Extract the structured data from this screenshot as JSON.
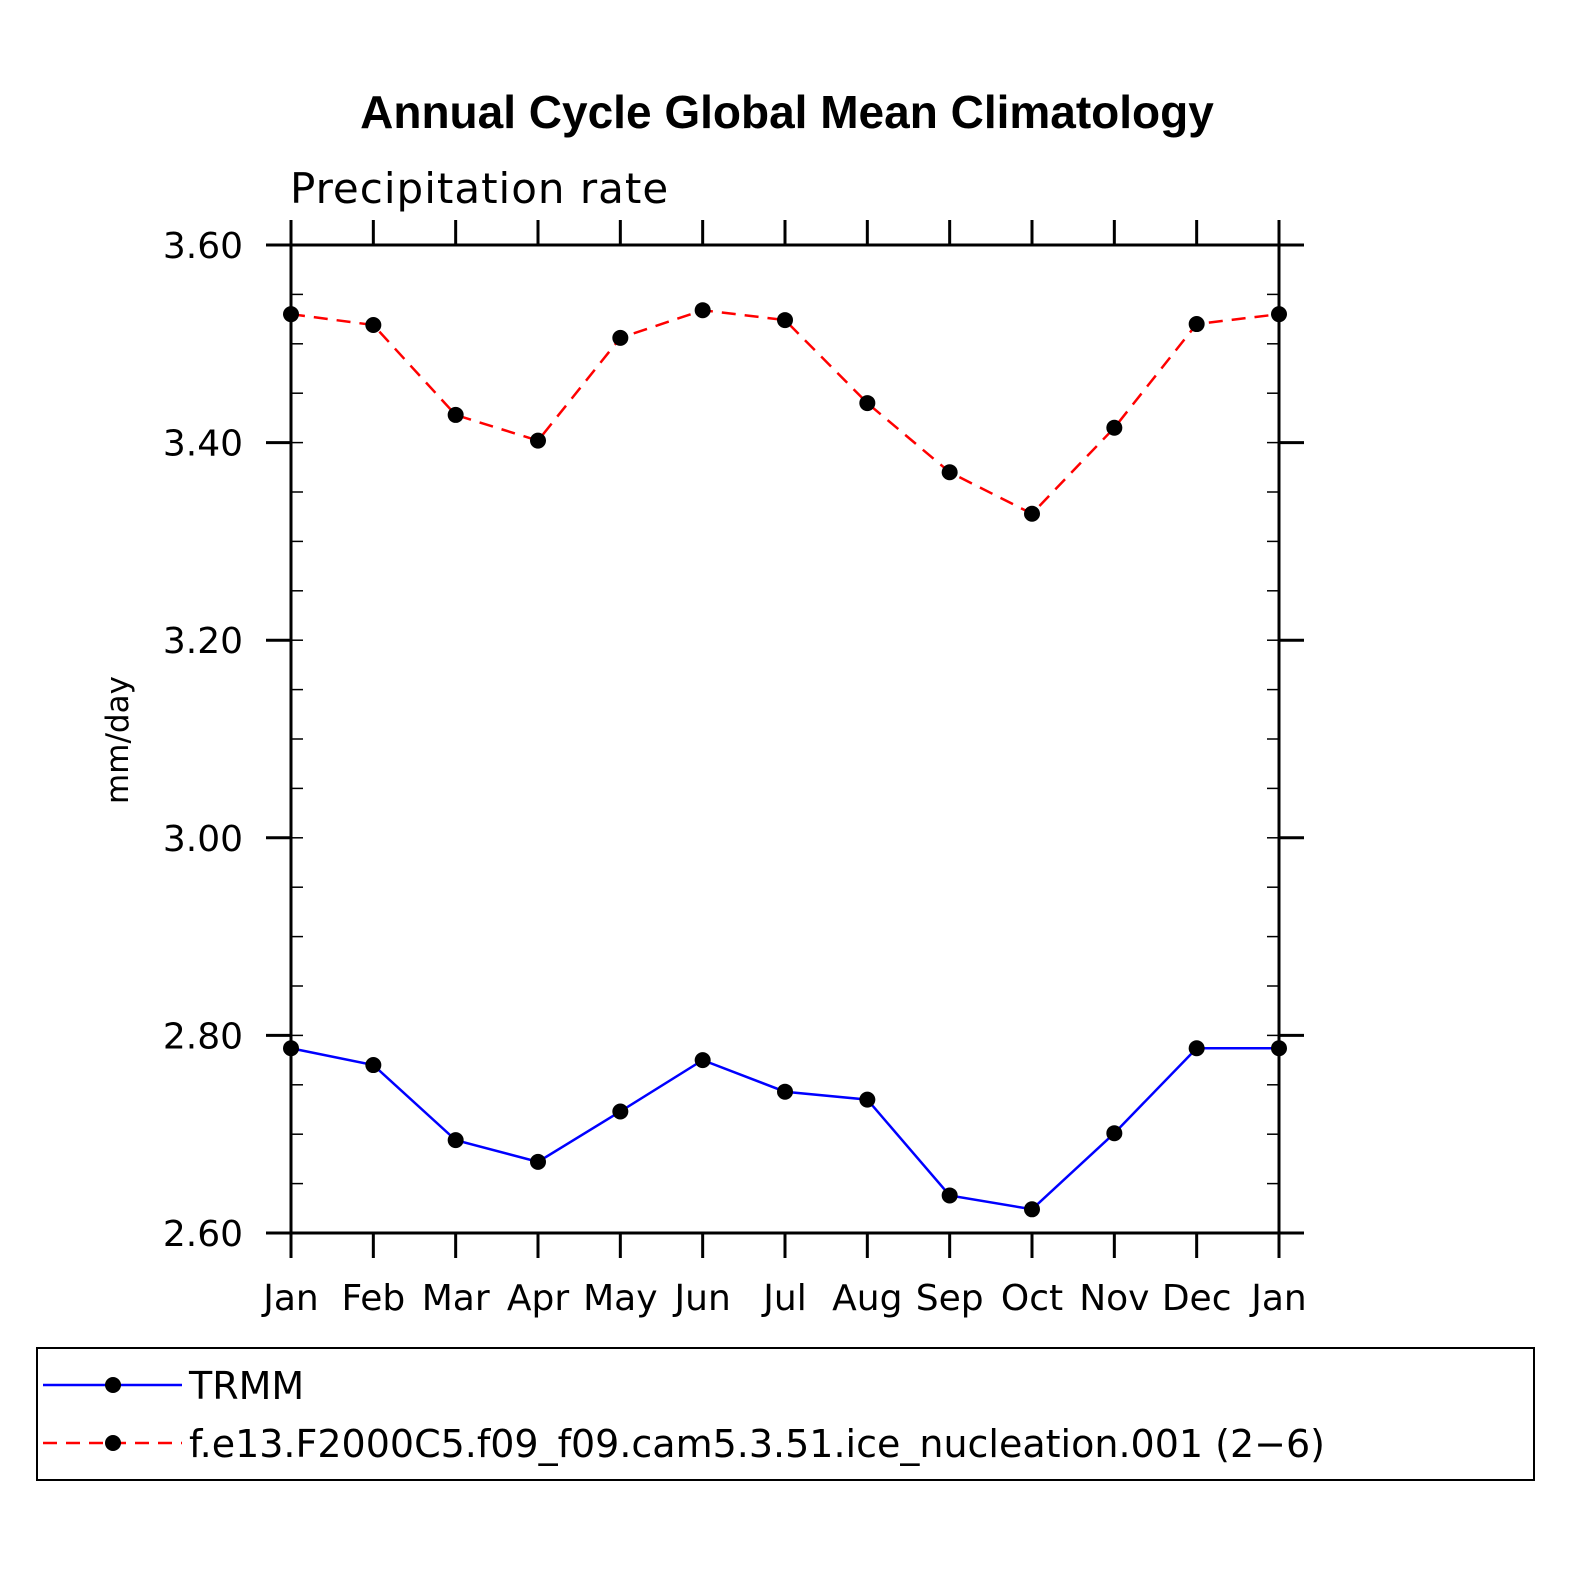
{
  "chart_data": {
    "type": "line",
    "title": "Annual Cycle Global Mean Climatology",
    "subtitle": "Precipitation rate",
    "xlabel": "",
    "ylabel": "mm/day",
    "categories": [
      "Jan",
      "Feb",
      "Mar",
      "Apr",
      "May",
      "Jun",
      "Jul",
      "Aug",
      "Sep",
      "Oct",
      "Nov",
      "Dec",
      "Jan"
    ],
    "ylim": [
      2.6,
      3.6
    ],
    "yticks": [
      "2.60",
      "2.80",
      "3.00",
      "3.20",
      "3.40",
      "3.60"
    ],
    "series": [
      {
        "name": "TRMM",
        "color": "#0000ff",
        "style": "solid",
        "values": [
          2.787,
          2.77,
          2.694,
          2.672,
          2.723,
          2.775,
          2.743,
          2.735,
          2.638,
          2.624,
          2.701,
          2.787,
          2.787
        ]
      },
      {
        "name": "f.e13.F2000C5.f09_f09.cam5.3.51.ice_nucleation.001 (2−6)",
        "color": "#ff0000",
        "style": "dashed",
        "values": [
          3.53,
          3.519,
          3.428,
          3.402,
          3.506,
          3.534,
          3.524,
          3.44,
          3.37,
          3.328,
          3.415,
          3.52,
          3.53
        ]
      }
    ],
    "marker_color": "#000000"
  }
}
